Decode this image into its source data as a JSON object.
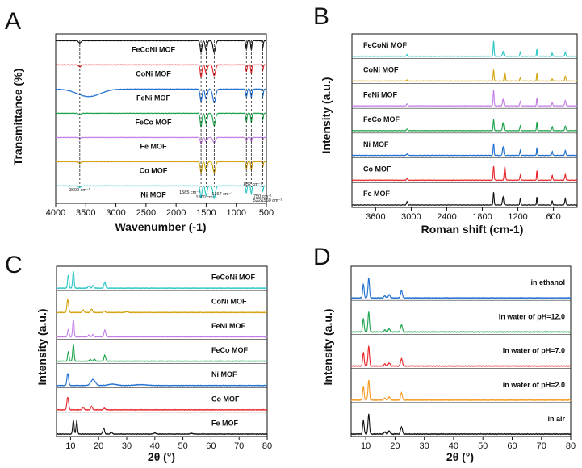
{
  "figure": {
    "panel_letters": [
      "A",
      "B",
      "C",
      "D"
    ]
  },
  "chart_data": [
    {
      "panel": "A",
      "type": "line",
      "xlabel": "Wavenumber (-1)",
      "ylabel": "Transmittance (%)",
      "xlim": [
        4000,
        500
      ],
      "xticks": [
        "4000",
        "3500",
        "3000",
        "2500",
        "2000",
        "1500",
        "1000",
        "500"
      ],
      "series": [
        {
          "name": "FeCoNi MOF",
          "color": "#111111",
          "baseline": 0.2,
          "peaks": [
            [
              3600,
              0.18,
              18
            ],
            [
              1585,
              0.85,
              14
            ],
            [
              1500,
              0.7,
              16
            ],
            [
              1367,
              0.85,
              20
            ],
            [
              832,
              0.6,
              10
            ],
            [
              750,
              0.7,
              9
            ],
            [
              560,
              0.5,
              9
            ]
          ]
        },
        {
          "name": "CoNi MOF",
          "color": "#e8262a",
          "baseline": 0.16,
          "peaks": [
            [
              3600,
              0.15,
              18
            ],
            [
              1585,
              0.9,
              14
            ],
            [
              1500,
              0.65,
              16
            ],
            [
              1367,
              0.8,
              20
            ],
            [
              832,
              0.5,
              10
            ],
            [
              750,
              0.65,
              9
            ],
            [
              560,
              0.4,
              9
            ]
          ]
        },
        {
          "name": "FeNi MOF",
          "color": "#1f6fd0",
          "baseline": 0.2,
          "peaks": [
            [
              3450,
              0.55,
              190
            ],
            [
              1585,
              0.9,
              16
            ],
            [
              1500,
              0.75,
              18
            ],
            [
              1367,
              1.0,
              24
            ],
            [
              832,
              0.55,
              12
            ],
            [
              750,
              0.6,
              10
            ],
            [
              560,
              0.55,
              10
            ]
          ]
        },
        {
          "name": "FeCo MOF",
          "color": "#1ba34a",
          "baseline": 0.22,
          "peaks": [
            [
              3600,
              0.12,
              18
            ],
            [
              1585,
              1.0,
              14
            ],
            [
              1500,
              0.8,
              16
            ],
            [
              1367,
              0.9,
              20
            ],
            [
              832,
              0.6,
              10
            ],
            [
              750,
              0.7,
              9
            ],
            [
              560,
              0.5,
              9
            ]
          ]
        },
        {
          "name": "Fe MOF",
          "color": "#c47ee6",
          "baseline": 0.15,
          "peaks": [
            [
              3600,
              0.06,
              18
            ],
            [
              1585,
              0.45,
              14
            ],
            [
              1500,
              0.35,
              16
            ],
            [
              1367,
              0.4,
              20
            ],
            [
              832,
              0.25,
              10
            ],
            [
              750,
              0.3,
              9
            ],
            [
              560,
              0.2,
              9
            ]
          ]
        },
        {
          "name": "Co MOF",
          "color": "#d4a20c",
          "baseline": 0.18,
          "peaks": [
            [
              3600,
              0.12,
              18
            ],
            [
              1585,
              0.8,
              14
            ],
            [
              1500,
              0.65,
              16
            ],
            [
              1367,
              0.8,
              20
            ],
            [
              832,
              0.5,
              10
            ],
            [
              750,
              0.6,
              9
            ],
            [
              560,
              0.4,
              9
            ]
          ]
        },
        {
          "name": "Ni MOF",
          "color": "#2bc6c6",
          "baseline": 0.15,
          "peaks": [
            [
              3600,
              0.12,
              18
            ],
            [
              1585,
              0.9,
              14
            ],
            [
              1500,
              0.7,
              16
            ],
            [
              1367,
              0.9,
              20
            ],
            [
              832,
              0.5,
              10
            ],
            [
              750,
              0.6,
              9
            ],
            [
              560,
              0.4,
              9
            ]
          ]
        }
      ],
      "annotations": [
        {
          "text": "3600 cm⁻¹",
          "x": 3600
        },
        {
          "text": "1585 cm⁻¹",
          "x": 1585
        },
        {
          "text": "1500 cm⁻¹",
          "x": 1500
        },
        {
          "text": "1367 cm⁻¹",
          "x": 1367
        },
        {
          "text": "832 cm⁻¹",
          "x": 832
        },
        {
          "text": "750 cm⁻¹",
          "x": 750
        },
        {
          "text": "522&560 cm⁻¹",
          "x": 560
        }
      ]
    },
    {
      "panel": "B",
      "type": "line",
      "xlabel": "Roman shift (cm-1)",
      "ylabel": "Intensity (a.u.)",
      "xlim": [
        4000,
        200
      ],
      "xticks": [
        "3600",
        "3000",
        "2400",
        "1800",
        "1200",
        "600"
      ],
      "series": [
        {
          "name": "FeCoNi MOF",
          "color": "#2bc6c6",
          "peaks": [
            [
              3070,
              0.1,
              10
            ],
            [
              1610,
              0.95,
              8
            ],
            [
              1450,
              0.3,
              10
            ],
            [
              1160,
              0.25,
              8
            ],
            [
              880,
              0.45,
              6
            ],
            [
              620,
              0.2,
              8
            ],
            [
              400,
              0.25,
              10
            ]
          ]
        },
        {
          "name": "CoNi MOF",
          "color": "#d4a20c",
          "peaks": [
            [
              3070,
              0.08,
              10
            ],
            [
              1610,
              0.7,
              8
            ],
            [
              1420,
              0.55,
              10
            ],
            [
              1160,
              0.2,
              8
            ],
            [
              880,
              0.5,
              6
            ],
            [
              620,
              0.15,
              8
            ],
            [
              400,
              0.3,
              10
            ]
          ]
        },
        {
          "name": "FeNi MOF",
          "color": "#c47ee6",
          "peaks": [
            [
              3070,
              0.12,
              10
            ],
            [
              1610,
              1.0,
              8
            ],
            [
              1450,
              0.4,
              10
            ],
            [
              1160,
              0.3,
              8
            ],
            [
              880,
              0.5,
              6
            ],
            [
              620,
              0.2,
              8
            ],
            [
              400,
              0.35,
              10
            ]
          ]
        },
        {
          "name": "FeCo MOF",
          "color": "#1ba34a",
          "peaks": [
            [
              3070,
              0.1,
              10
            ],
            [
              1610,
              0.7,
              8
            ],
            [
              1450,
              0.5,
              10
            ],
            [
              1160,
              0.3,
              8
            ],
            [
              880,
              0.55,
              6
            ],
            [
              620,
              0.25,
              8
            ],
            [
              400,
              0.3,
              10
            ]
          ]
        },
        {
          "name": "Ni MOF",
          "color": "#1f6fd0",
          "peaks": [
            [
              3070,
              0.1,
              10
            ],
            [
              1610,
              0.75,
              8
            ],
            [
              1450,
              0.55,
              10
            ],
            [
              1160,
              0.3,
              8
            ],
            [
              880,
              0.5,
              6
            ],
            [
              620,
              0.25,
              8
            ],
            [
              400,
              0.3,
              10
            ]
          ]
        },
        {
          "name": "Co MOF",
          "color": "#e8262a",
          "peaks": [
            [
              3070,
              0.1,
              10
            ],
            [
              1610,
              0.9,
              8
            ],
            [
              1420,
              0.85,
              10
            ],
            [
              1160,
              0.3,
              8
            ],
            [
              880,
              0.6,
              6
            ],
            [
              620,
              0.3,
              8
            ],
            [
              400,
              0.35,
              10
            ]
          ]
        },
        {
          "name": "Fe MOF",
          "color": "#111111",
          "peaks": [
            [
              3070,
              0.2,
              10
            ],
            [
              1610,
              0.8,
              8
            ],
            [
              1450,
              0.5,
              10
            ],
            [
              1160,
              0.4,
              8
            ],
            [
              880,
              0.5,
              6
            ],
            [
              620,
              0.25,
              8
            ],
            [
              400,
              0.4,
              10
            ]
          ]
        }
      ]
    },
    {
      "panel": "C",
      "type": "line",
      "xlabel": "2θ (°)",
      "ylabel": "Intensity (a.u.)",
      "xlim": [
        5,
        80
      ],
      "xticks": [
        "10",
        "20",
        "30",
        "40",
        "50",
        "60",
        "70",
        "80"
      ],
      "series": [
        {
          "name": "FeCoNi MOF",
          "color": "#2bc6c6",
          "peaks": [
            [
              9.2,
              0.75,
              0.25
            ],
            [
              11.0,
              1.0,
              0.25
            ],
            [
              16.5,
              0.12,
              0.3
            ],
            [
              18.0,
              0.15,
              0.3
            ],
            [
              22.2,
              0.35,
              0.3
            ]
          ]
        },
        {
          "name": "CoNi MOF",
          "color": "#d4a20c",
          "peaks": [
            [
              9.0,
              0.75,
              0.3
            ],
            [
              14.5,
              0.15,
              0.3
            ],
            [
              17.5,
              0.2,
              0.3
            ],
            [
              22.0,
              0.1,
              0.3
            ],
            [
              30,
              0.05,
              0.5
            ]
          ]
        },
        {
          "name": "FeNi MOF",
          "color": "#c47ee6",
          "peaks": [
            [
              9.2,
              0.45,
              0.25
            ],
            [
              11.0,
              1.0,
              0.25
            ],
            [
              16.5,
              0.1,
              0.3
            ],
            [
              18.0,
              0.15,
              0.3
            ],
            [
              22.2,
              0.4,
              0.3
            ]
          ]
        },
        {
          "name": "FeCo MOF",
          "color": "#1ba34a",
          "peaks": [
            [
              9.2,
              0.55,
              0.25
            ],
            [
              11.0,
              1.0,
              0.25
            ],
            [
              17.0,
              0.1,
              0.3
            ],
            [
              18.5,
              0.12,
              0.3
            ],
            [
              22.2,
              0.35,
              0.3
            ]
          ]
        },
        {
          "name": "Ni MOF",
          "color": "#1f6fd0",
          "peaks": [
            [
              9.0,
              0.7,
              0.3
            ],
            [
              18.0,
              0.35,
              0.8
            ],
            [
              25,
              0.08,
              1.5
            ],
            [
              35,
              0.05,
              2
            ]
          ]
        },
        {
          "name": "Co MOF",
          "color": "#e8262a",
          "peaks": [
            [
              9.0,
              0.75,
              0.3
            ],
            [
              14.5,
              0.15,
              0.3
            ],
            [
              17.5,
              0.2,
              0.3
            ],
            [
              22.0,
              0.1,
              0.3
            ]
          ]
        },
        {
          "name": "Fe MOF",
          "color": "#111111",
          "peaks": [
            [
              11.0,
              0.8,
              0.25
            ],
            [
              12.2,
              0.75,
              0.25
            ],
            [
              21.8,
              0.35,
              0.3
            ],
            [
              24.5,
              0.12,
              0.3
            ],
            [
              40,
              0.06,
              0.4
            ],
            [
              53,
              0.05,
              0.4
            ]
          ]
        }
      ]
    },
    {
      "panel": "D",
      "type": "line",
      "xlabel": "2θ (°)",
      "ylabel": "Intensity (a.u.)",
      "xlim": [
        5,
        80
      ],
      "xticks": [
        "10",
        "20",
        "30",
        "40",
        "50",
        "60",
        "70",
        "80"
      ],
      "series": [
        {
          "name": "in ethanol",
          "color": "#1f6fd0",
          "peaks": [
            [
              9.2,
              0.65,
              0.25
            ],
            [
              11.0,
              0.95,
              0.25
            ],
            [
              16.5,
              0.1,
              0.3
            ],
            [
              18.0,
              0.15,
              0.3
            ],
            [
              22.2,
              0.35,
              0.3
            ]
          ]
        },
        {
          "name": "in water of pH=12.0",
          "color": "#1ba34a",
          "peaks": [
            [
              9.2,
              0.65,
              0.25
            ],
            [
              11.0,
              0.95,
              0.25
            ],
            [
              16.5,
              0.1,
              0.3
            ],
            [
              18.0,
              0.15,
              0.3
            ],
            [
              22.2,
              0.35,
              0.3
            ]
          ]
        },
        {
          "name": "in water of pH=7.0",
          "color": "#e8262a",
          "peaks": [
            [
              9.2,
              0.65,
              0.25
            ],
            [
              11.0,
              0.95,
              0.25
            ],
            [
              16.5,
              0.1,
              0.3
            ],
            [
              18.0,
              0.15,
              0.3
            ],
            [
              22.2,
              0.35,
              0.3
            ]
          ]
        },
        {
          "name": "in water of pH=2.0",
          "color": "#f59a23",
          "peaks": [
            [
              9.2,
              0.65,
              0.25
            ],
            [
              11.0,
              0.95,
              0.25
            ],
            [
              16.5,
              0.1,
              0.3
            ],
            [
              18.0,
              0.15,
              0.3
            ],
            [
              22.2,
              0.35,
              0.3
            ]
          ]
        },
        {
          "name": "in air",
          "color": "#111111",
          "peaks": [
            [
              9.2,
              0.65,
              0.25
            ],
            [
              11.0,
              0.95,
              0.25
            ],
            [
              16.5,
              0.1,
              0.3
            ],
            [
              18.0,
              0.15,
              0.3
            ],
            [
              22.2,
              0.35,
              0.3
            ]
          ]
        }
      ]
    }
  ]
}
